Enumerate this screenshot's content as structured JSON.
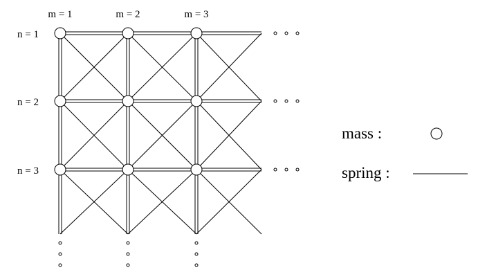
{
  "column_labels": [
    "m = 1",
    "m = 2",
    "m = 3"
  ],
  "row_labels": [
    "n = 1",
    "n = 2",
    "n = 3"
  ],
  "legend": {
    "mass_label": "mass :",
    "spring_label": "spring :"
  },
  "icons": {
    "mass": "circle-icon",
    "spring": "line-icon"
  }
}
